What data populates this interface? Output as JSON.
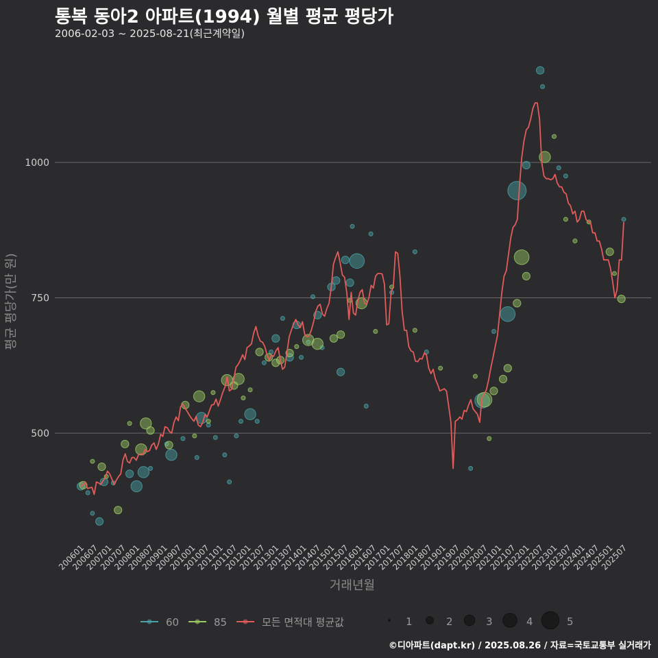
{
  "header": {
    "title": "통복 동아2 아파트(1994) 월별 평균 평당가",
    "subtitle": "2006-02-03 ~ 2025-08-21(최근계약일)"
  },
  "footer": {
    "credit": "©디아파트(dapt.kr) / 2025.08.26 / 자료=국토교통부 실거래가"
  },
  "chart_data": {
    "type": "line",
    "title": "통복 동아2 아파트(1994) 월별 평균 평당가",
    "xlabel": "거래년월",
    "ylabel": "평균 평당가(만 원)",
    "ylim": [
      300,
      1200
    ],
    "yticks": [
      500,
      750,
      1000
    ],
    "grid": true,
    "legend_position": "bottom",
    "x_ticks": [
      "200601",
      "200607",
      "200701",
      "200707",
      "200801",
      "200807",
      "200901",
      "200907",
      "201001",
      "201007",
      "201101",
      "201107",
      "201201",
      "201207",
      "201301",
      "201307",
      "201401",
      "201407",
      "201501",
      "201507",
      "201601",
      "201607",
      "201701",
      "201707",
      "201801",
      "201807",
      "201901",
      "201907",
      "202001",
      "202007",
      "202101",
      "202107",
      "202201",
      "202207",
      "202301",
      "202307",
      "202401",
      "202407",
      "202501",
      "202507"
    ],
    "colors": {
      "area60": "#4aa3a8",
      "area85": "#9ccc65",
      "mean": "#e45b5b"
    },
    "legend": {
      "series": [
        {
          "name": "60",
          "color": "#4aa3a8"
        },
        {
          "name": "85",
          "color": "#9ccc65"
        },
        {
          "name": "모든 면적대 평균값",
          "color": "#e45b5b"
        }
      ],
      "size_title": "",
      "sizes": [
        1,
        2,
        3,
        4,
        5
      ]
    },
    "mean_line": {
      "name": "모든 면적대 평균값",
      "start": "200601",
      "values": [
        402,
        404,
        410,
        398,
        399,
        400,
        387,
        410,
        408,
        405,
        412,
        418,
        430,
        425,
        415,
        405,
        413,
        420,
        425,
        450,
        462,
        448,
        445,
        455,
        455,
        450,
        460,
        462,
        460,
        470,
        466,
        468,
        478,
        482,
        470,
        480,
        498,
        494,
        512,
        510,
        503,
        500,
        520,
        530,
        523,
        549,
        554,
        546,
        540,
        533,
        527,
        522,
        531,
        515,
        512,
        520,
        534,
        530,
        541,
        552,
        553,
        563,
        550,
        562,
        575,
        585,
        604,
        578,
        581,
        600,
        622,
        627,
        635,
        645,
        636,
        658,
        661,
        665,
        685,
        697,
        680,
        670,
        668,
        660,
        645,
        635,
        644,
        642,
        652,
        658,
        636,
        618,
        622,
        648,
        678,
        690,
        702,
        710,
        700,
        695,
        706,
        683,
        678,
        680,
        690,
        705,
        725,
        735,
        738,
        720,
        716,
        730,
        740,
        770,
        812,
        825,
        835,
        815,
        792,
        788,
        760,
        710,
        760,
        722,
        718,
        745,
        760,
        765,
        740,
        738,
        750,
        773,
        768,
        790,
        795,
        795,
        794,
        775,
        700,
        702,
        760,
        770,
        835,
        832,
        790,
        725,
        690,
        690,
        660,
        652,
        650,
        633,
        632,
        638,
        637,
        648,
        644,
        620,
        610,
        618,
        600,
        590,
        578,
        580,
        582,
        578,
        550,
        520,
        435,
        522,
        525,
        530,
        526,
        542,
        540,
        552,
        562,
        545,
        540,
        535,
        520,
        565,
        572,
        580,
        598,
        620,
        640,
        660,
        680,
        720,
        760,
        790,
        800,
        830,
        860,
        880,
        885,
        895,
        960,
        1010,
        1040,
        1060,
        1065,
        1080,
        1100,
        1110,
        1110,
        1080,
        1000,
        975,
        970,
        970,
        968,
        970,
        978,
        962,
        955,
        955,
        945,
        942,
        925,
        920,
        905,
        910,
        890,
        895,
        910,
        910,
        895,
        890,
        890,
        870,
        870,
        855,
        855,
        840,
        820,
        820,
        820,
        805,
        780,
        750,
        765,
        820,
        820,
        890
      ]
    },
    "points_60": [
      {
        "m": "200601",
        "v": 402,
        "n": 2
      },
      {
        "m": "200604",
        "v": 390,
        "n": 1
      },
      {
        "m": "200606",
        "v": 352,
        "n": 1
      },
      {
        "m": "200609",
        "v": 337,
        "n": 2
      },
      {
        "m": "200611",
        "v": 410,
        "n": 2
      },
      {
        "m": "200703",
        "v": 408,
        "n": 1
      },
      {
        "m": "200710",
        "v": 425,
        "n": 2
      },
      {
        "m": "200801",
        "v": 402,
        "n": 3
      },
      {
        "m": "200804",
        "v": 428,
        "n": 3
      },
      {
        "m": "200807",
        "v": 435,
        "n": 1
      },
      {
        "m": "200902",
        "v": 480,
        "n": 1
      },
      {
        "m": "200904",
        "v": 460,
        "n": 3
      },
      {
        "m": "200909",
        "v": 490,
        "n": 1
      },
      {
        "m": "201003",
        "v": 455,
        "n": 1
      },
      {
        "m": "201005",
        "v": 528,
        "n": 3
      },
      {
        "m": "201008",
        "v": 515,
        "n": 1
      },
      {
        "m": "201011",
        "v": 492,
        "n": 1
      },
      {
        "m": "201103",
        "v": 460,
        "n": 1
      },
      {
        "m": "201105",
        "v": 410,
        "n": 1
      },
      {
        "m": "201108",
        "v": 495,
        "n": 1
      },
      {
        "m": "201110",
        "v": 522,
        "n": 1
      },
      {
        "m": "201202",
        "v": 535,
        "n": 3
      },
      {
        "m": "201205",
        "v": 522,
        "n": 1
      },
      {
        "m": "201208",
        "v": 630,
        "n": 1
      },
      {
        "m": "201211",
        "v": 650,
        "n": 1
      },
      {
        "m": "201301",
        "v": 675,
        "n": 2
      },
      {
        "m": "201304",
        "v": 712,
        "n": 1
      },
      {
        "m": "201307",
        "v": 640,
        "n": 2
      },
      {
        "m": "201310",
        "v": 700,
        "n": 2
      },
      {
        "m": "201312",
        "v": 640,
        "n": 1
      },
      {
        "m": "201403",
        "v": 668,
        "n": 1
      },
      {
        "m": "201405",
        "v": 752,
        "n": 1
      },
      {
        "m": "201407",
        "v": 718,
        "n": 2
      },
      {
        "m": "201409",
        "v": 658,
        "n": 1
      },
      {
        "m": "201501",
        "v": 770,
        "n": 2
      },
      {
        "m": "201503",
        "v": 782,
        "n": 2
      },
      {
        "m": "201505",
        "v": 613,
        "n": 2
      },
      {
        "m": "201507",
        "v": 820,
        "n": 2
      },
      {
        "m": "201509",
        "v": 778,
        "n": 2
      },
      {
        "m": "201510",
        "v": 882,
        "n": 1
      },
      {
        "m": "201512",
        "v": 818,
        "n": 4
      },
      {
        "m": "201604",
        "v": 550,
        "n": 1
      },
      {
        "m": "201606",
        "v": 868,
        "n": 1
      },
      {
        "m": "201703",
        "v": 760,
        "n": 1
      },
      {
        "m": "201801",
        "v": 835,
        "n": 1
      },
      {
        "m": "201806",
        "v": 650,
        "n": 1
      },
      {
        "m": "202001",
        "v": 435,
        "n": 1
      },
      {
        "m": "202006",
        "v": 560,
        "n": 4
      },
      {
        "m": "202011",
        "v": 688,
        "n": 1
      },
      {
        "m": "202105",
        "v": 720,
        "n": 4
      },
      {
        "m": "202109",
        "v": 948,
        "n": 5
      },
      {
        "m": "202201",
        "v": 995,
        "n": 2
      },
      {
        "m": "202207",
        "v": 1170,
        "n": 2
      },
      {
        "m": "202208",
        "v": 1140,
        "n": 1
      },
      {
        "m": "202303",
        "v": 990,
        "n": 1
      },
      {
        "m": "202306",
        "v": 975,
        "n": 1
      },
      {
        "m": "202507",
        "v": 895,
        "n": 1
      }
    ],
    "points_85": [
      {
        "m": "200602",
        "v": 404,
        "n": 2
      },
      {
        "m": "200606",
        "v": 448,
        "n": 1
      },
      {
        "m": "200610",
        "v": 438,
        "n": 2
      },
      {
        "m": "200612",
        "v": 420,
        "n": 1
      },
      {
        "m": "200705",
        "v": 358,
        "n": 2
      },
      {
        "m": "200708",
        "v": 480,
        "n": 2
      },
      {
        "m": "200710",
        "v": 518,
        "n": 1
      },
      {
        "m": "200803",
        "v": 470,
        "n": 3
      },
      {
        "m": "200805",
        "v": 518,
        "n": 3
      },
      {
        "m": "200807",
        "v": 505,
        "n": 2
      },
      {
        "m": "200903",
        "v": 478,
        "n": 2
      },
      {
        "m": "200910",
        "v": 552,
        "n": 2
      },
      {
        "m": "201002",
        "v": 495,
        "n": 1
      },
      {
        "m": "201004",
        "v": 568,
        "n": 3
      },
      {
        "m": "201008",
        "v": 522,
        "n": 1
      },
      {
        "m": "201010",
        "v": 575,
        "n": 1
      },
      {
        "m": "201104",
        "v": 598,
        "n": 3
      },
      {
        "m": "201107",
        "v": 588,
        "n": 2
      },
      {
        "m": "201109",
        "v": 600,
        "n": 3
      },
      {
        "m": "201111",
        "v": 565,
        "n": 1
      },
      {
        "m": "201202",
        "v": 580,
        "n": 1
      },
      {
        "m": "201206",
        "v": 650,
        "n": 2
      },
      {
        "m": "201210",
        "v": 640,
        "n": 2
      },
      {
        "m": "201301",
        "v": 630,
        "n": 2
      },
      {
        "m": "201303",
        "v": 635,
        "n": 2
      },
      {
        "m": "201307",
        "v": 648,
        "n": 2
      },
      {
        "m": "201310",
        "v": 660,
        "n": 1
      },
      {
        "m": "201403",
        "v": 672,
        "n": 3
      },
      {
        "m": "201407",
        "v": 665,
        "n": 3
      },
      {
        "m": "201502",
        "v": 675,
        "n": 2
      },
      {
        "m": "201505",
        "v": 682,
        "n": 2
      },
      {
        "m": "201509",
        "v": 745,
        "n": 1
      },
      {
        "m": "201602",
        "v": 740,
        "n": 3
      },
      {
        "m": "201608",
        "v": 688,
        "n": 1
      },
      {
        "m": "201703",
        "v": 770,
        "n": 1
      },
      {
        "m": "201801",
        "v": 690,
        "n": 1
      },
      {
        "m": "201812",
        "v": 620,
        "n": 1
      },
      {
        "m": "202003",
        "v": 605,
        "n": 1
      },
      {
        "m": "202007",
        "v": 562,
        "n": 4
      },
      {
        "m": "202009",
        "v": 490,
        "n": 1
      },
      {
        "m": "202011",
        "v": 578,
        "n": 2
      },
      {
        "m": "202103",
        "v": 600,
        "n": 2
      },
      {
        "m": "202105",
        "v": 620,
        "n": 2
      },
      {
        "m": "202109",
        "v": 740,
        "n": 2
      },
      {
        "m": "202111",
        "v": 825,
        "n": 4
      },
      {
        "m": "202201",
        "v": 790,
        "n": 2
      },
      {
        "m": "202209",
        "v": 1010,
        "n": 3
      },
      {
        "m": "202301",
        "v": 1048,
        "n": 1
      },
      {
        "m": "202306",
        "v": 895,
        "n": 1
      },
      {
        "m": "202310",
        "v": 855,
        "n": 1
      },
      {
        "m": "202404",
        "v": 890,
        "n": 1
      },
      {
        "m": "202501",
        "v": 835,
        "n": 2
      },
      {
        "m": "202503",
        "v": 795,
        "n": 1
      },
      {
        "m": "202506",
        "v": 748,
        "n": 2
      }
    ]
  }
}
